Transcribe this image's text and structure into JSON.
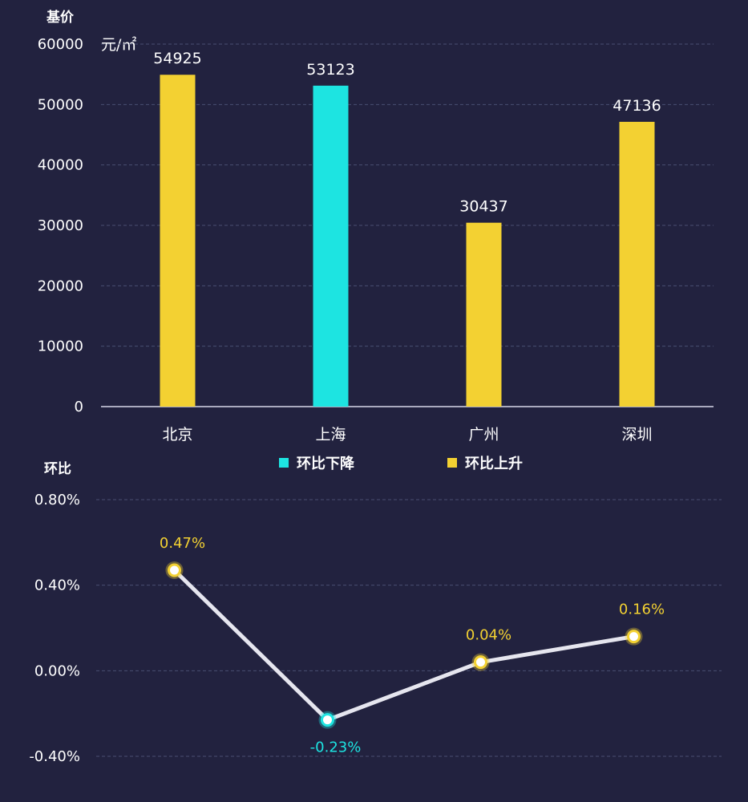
{
  "colors": {
    "up": "#f3d132",
    "down": "#1de4e1",
    "line": "#e6e6ef",
    "background": "#22223f"
  },
  "chart_data": [
    {
      "type": "bar",
      "ylabel": "基价",
      "unit": "元/㎡",
      "categories": [
        "北京",
        "上海",
        "广州",
        "深圳"
      ],
      "values": [
        54925,
        53123,
        30437,
        47136
      ],
      "trend": [
        "up",
        "down",
        "up",
        "up"
      ],
      "ylim": [
        0,
        60000
      ],
      "yticks": [
        "0",
        "10000",
        "20000",
        "30000",
        "40000",
        "50000",
        "60000"
      ],
      "legend": [
        {
          "label": "环比下降",
          "trend": "down"
        },
        {
          "label": "环比上升",
          "trend": "up"
        }
      ],
      "legend_position": "bottom-center",
      "grid": true
    },
    {
      "type": "line",
      "ylabel": "环比",
      "categories": [
        "北京",
        "上海",
        "广州",
        "深圳"
      ],
      "values": [
        0.47,
        -0.23,
        0.04,
        0.16
      ],
      "labels": [
        "0.47%",
        "-0.23%",
        "0.04%",
        "0.16%"
      ],
      "ylim": [
        -0.4,
        0.8
      ],
      "yticks": [
        "-0.40%",
        "0.00%",
        "0.40%",
        "0.80%"
      ],
      "grid": true
    }
  ]
}
